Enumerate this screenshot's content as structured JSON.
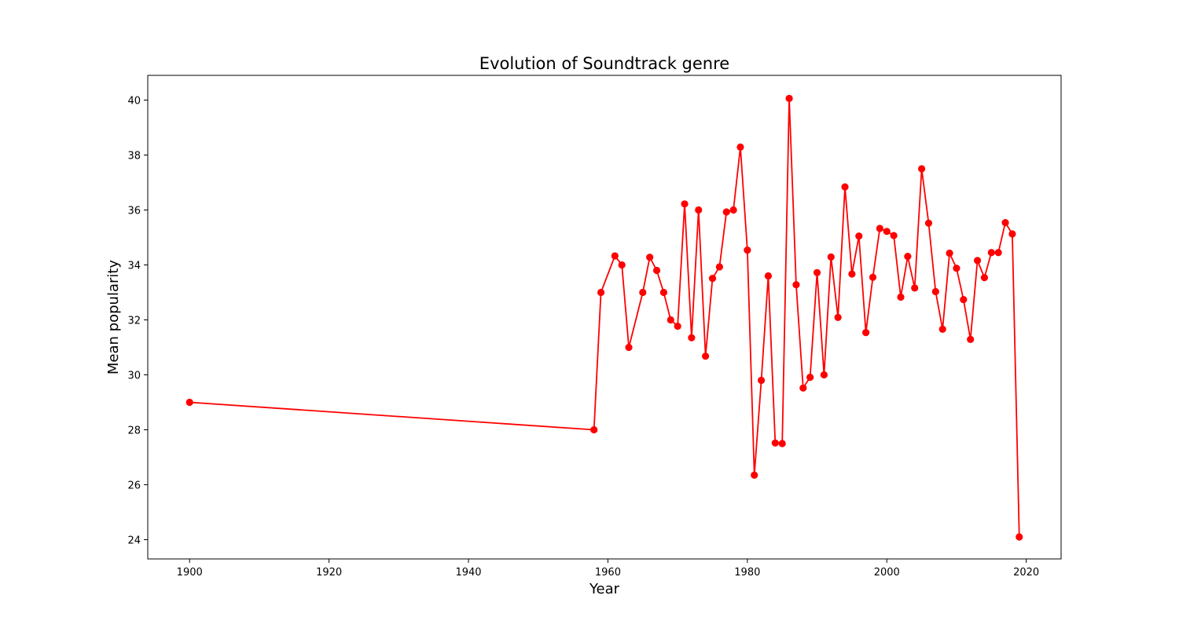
{
  "chart_data": {
    "type": "line",
    "title": "Evolution of Soundtrack genre",
    "xlabel": "Year",
    "ylabel": "Mean popularity",
    "xlim": [
      1894,
      2025
    ],
    "ylim": [
      23.3,
      40.9
    ],
    "xticks": [
      1900,
      1920,
      1940,
      1960,
      1980,
      2000,
      2020
    ],
    "yticks": [
      24,
      26,
      28,
      30,
      32,
      34,
      36,
      38,
      40
    ],
    "grid": false,
    "legend": "none",
    "colors": {
      "line": "#ff0000",
      "marker": "#ff0000",
      "axes": "#000000",
      "background": "#ffffff"
    },
    "series": [
      {
        "marker": "circle",
        "x": [
          1900,
          1958,
          1959,
          1961,
          1962,
          1963,
          1965,
          1966,
          1967,
          1968,
          1969,
          1970,
          1971,
          1972,
          1973,
          1974,
          1975,
          1976,
          1977,
          1978,
          1979,
          1980,
          1981,
          1982,
          1983,
          1984,
          1985,
          1986,
          1987,
          1988,
          1989,
          1990,
          1991,
          1992,
          1993,
          1994,
          1995,
          1996,
          1997,
          1998,
          1999,
          2000,
          2001,
          2002,
          2003,
          2004,
          2005,
          2006,
          2007,
          2008,
          2009,
          2010,
          2011,
          2012,
          2013,
          2014,
          2015,
          2016,
          2017,
          2018,
          2019
        ],
        "y": [
          29.0,
          28.0,
          33.0,
          34.33,
          34.0,
          31.0,
          33.0,
          34.28,
          33.8,
          33.0,
          32.0,
          31.77,
          36.22,
          31.35,
          36.0,
          30.68,
          33.51,
          33.93,
          35.93,
          36.0,
          38.29,
          34.54,
          26.35,
          29.8,
          33.6,
          27.52,
          27.5,
          40.06,
          33.28,
          29.52,
          29.91,
          33.72,
          30.0,
          34.29,
          32.09,
          36.84,
          33.67,
          35.05,
          31.54,
          33.55,
          35.33,
          35.22,
          35.07,
          32.83,
          34.31,
          33.16,
          37.5,
          35.52,
          33.03,
          31.66,
          34.43,
          33.88,
          32.74,
          31.29,
          34.16,
          33.54,
          34.45,
          34.45,
          35.54,
          35.13,
          24.1
        ]
      }
    ]
  }
}
